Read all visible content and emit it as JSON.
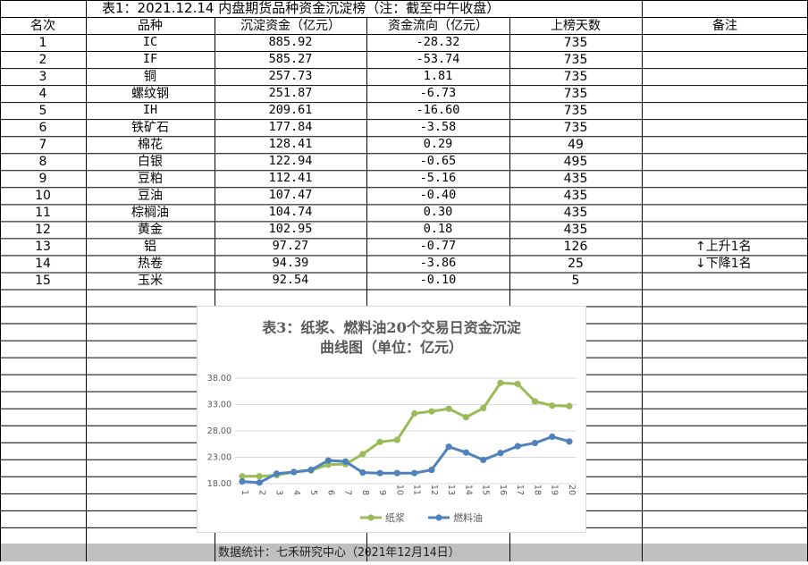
{
  "title": "表1：2021.12.14 内盘期货品种资金沉淀榜（注：截至中午收盘）",
  "headers": {
    "rank": "名次",
    "product": "品种",
    "capital": "沉淀资金（亿元）",
    "flow": "资金流向（亿元）",
    "days": "上榜天数",
    "note": "备注"
  },
  "rows": [
    {
      "rank": "1",
      "product": "IC",
      "capital": "885.92",
      "flow": "-28.32",
      "days": "735",
      "note": ""
    },
    {
      "rank": "2",
      "product": "IF",
      "capital": "585.27",
      "flow": "-53.74",
      "days": "735",
      "note": ""
    },
    {
      "rank": "3",
      "product": "铜",
      "capital": "257.73",
      "flow": "1.81",
      "days": "735",
      "note": ""
    },
    {
      "rank": "4",
      "product": "螺纹钢",
      "capital": "251.87",
      "flow": "-6.73",
      "days": "735",
      "note": ""
    },
    {
      "rank": "5",
      "product": "IH",
      "capital": "209.61",
      "flow": "-16.60",
      "days": "735",
      "note": ""
    },
    {
      "rank": "6",
      "product": "铁矿石",
      "capital": "177.84",
      "flow": "-3.58",
      "days": "735",
      "note": ""
    },
    {
      "rank": "7",
      "product": "棉花",
      "capital": "128.41",
      "flow": "0.29",
      "days": "49",
      "note": ""
    },
    {
      "rank": "8",
      "product": "白银",
      "capital": "122.94",
      "flow": "-0.65",
      "days": "495",
      "note": ""
    },
    {
      "rank": "9",
      "product": "豆粕",
      "capital": "112.41",
      "flow": "-5.16",
      "days": "435",
      "note": ""
    },
    {
      "rank": "10",
      "product": "豆油",
      "capital": "107.47",
      "flow": "-0.40",
      "days": "435",
      "note": ""
    },
    {
      "rank": "11",
      "product": "棕榈油",
      "capital": "104.74",
      "flow": "0.30",
      "days": "435",
      "note": ""
    },
    {
      "rank": "12",
      "product": "黄金",
      "capital": "102.95",
      "flow": "0.18",
      "days": "435",
      "note": ""
    },
    {
      "rank": "13",
      "product": "铝",
      "capital": "97.27",
      "flow": "-0.77",
      "days": "126",
      "note": "↑上升1名"
    },
    {
      "rank": "14",
      "product": "热卷",
      "capital": "94.39",
      "flow": "-3.86",
      "days": "25",
      "note": "↓下降1名"
    },
    {
      "rank": "15",
      "product": "玉米",
      "capital": "92.54",
      "flow": "-0.10",
      "days": "5",
      "note": ""
    }
  ],
  "footer": "数据统计：七禾研究中心（2021年12月14日）",
  "chart_data": {
    "type": "line",
    "title_line1": "表3：纸浆、燃料油20个交易日资金沉淀",
    "title_line2": "曲线图（单位：亿元）",
    "x": [
      "1",
      "2",
      "3",
      "4",
      "5",
      "6",
      "7",
      "8",
      "9",
      "10",
      "11",
      "12",
      "13",
      "14",
      "15",
      "16",
      "17",
      "18",
      "19",
      "20"
    ],
    "y_ticks": [
      "18.00",
      "23.00",
      "28.00",
      "33.00",
      "38.00"
    ],
    "ylim": [
      18,
      38
    ],
    "grid": true,
    "legend_position": "bottom",
    "series": [
      {
        "name": "纸浆",
        "color": "#9bbb59",
        "values": [
          19.4,
          19.4,
          19.6,
          20.2,
          20.5,
          21.6,
          21.7,
          23.6,
          25.9,
          26.3,
          31.3,
          31.7,
          32.2,
          30.6,
          32.3,
          37.1,
          36.9,
          33.6,
          32.8,
          32.7
        ]
      },
      {
        "name": "燃料油",
        "color": "#4f81bd",
        "values": [
          18.4,
          18.2,
          19.9,
          20.2,
          20.6,
          22.4,
          22.2,
          20.1,
          20.0,
          20.0,
          20.0,
          20.6,
          25.0,
          23.9,
          22.5,
          23.8,
          25.1,
          25.7,
          26.9,
          26.0
        ]
      }
    ]
  }
}
